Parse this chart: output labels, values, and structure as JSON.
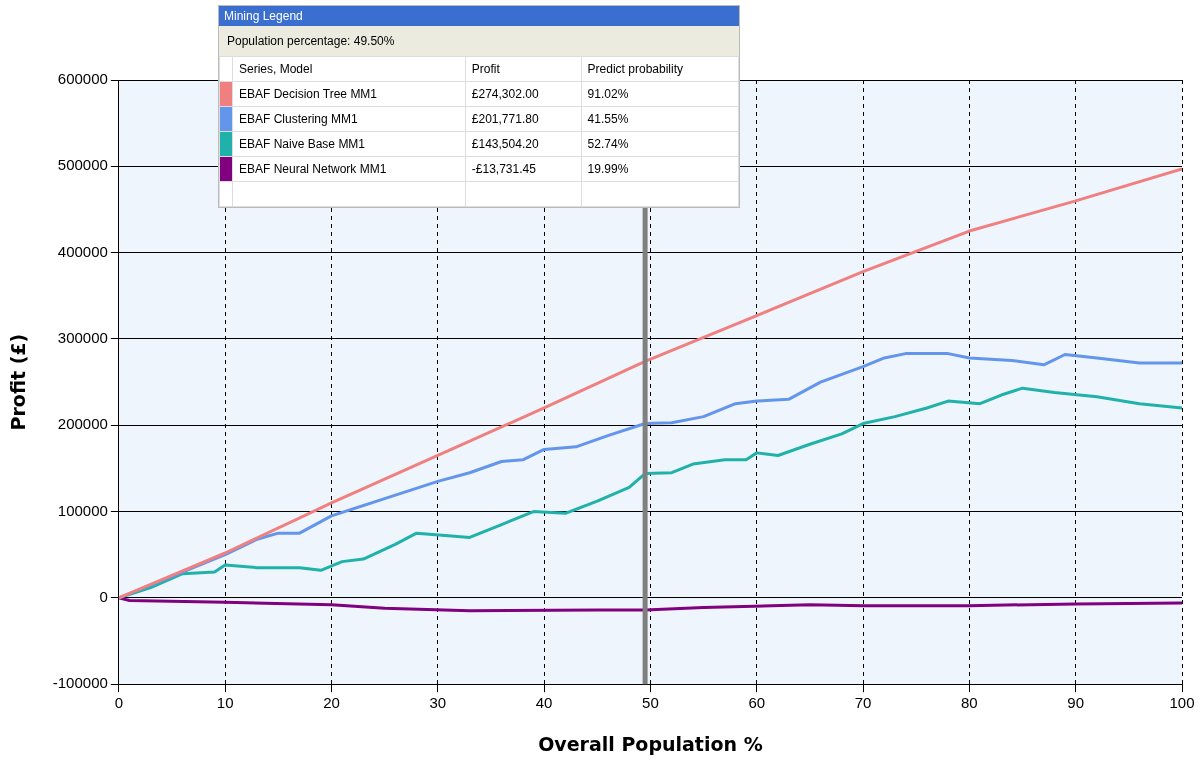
{
  "chart_data": {
    "type": "line",
    "xlabel": "Overall Population %",
    "ylabel": "Profit (£)",
    "legend_title": "Mining Legend",
    "xlim": [
      0,
      100
    ],
    "xticks": [
      0,
      10,
      20,
      30,
      40,
      50,
      60,
      70,
      80,
      90,
      100
    ],
    "ylim": [
      -100000,
      600000
    ],
    "yticks": [
      -100000,
      0,
      100000,
      200000,
      300000,
      400000,
      500000,
      600000
    ],
    "grid": true,
    "legend": "top left",
    "marker": "none",
    "line_style": "solid",
    "ref_lines": [
      {
        "axis": "x",
        "value": 49.5,
        "color": "#808080"
      }
    ],
    "annotations": [
      "Population percentage: 49.50%",
      "Series, Model",
      "Profit",
      "Predict probability",
      "£274,302.00",
      "91.02%",
      "£201,771.80",
      "41.55%",
      "£143,504.20",
      "52.74%",
      "-£13,731.45",
      "19.99%"
    ],
    "series": [
      {
        "name": "EBAF Decision Tree MM1",
        "color": "#f08080",
        "x": [
          0,
          5,
          10,
          20,
          30,
          40,
          49.5,
          60,
          70,
          80,
          90,
          100
        ],
        "values": [
          0,
          26000,
          52000,
          110000,
          165000,
          220000,
          274000,
          327000,
          378000,
          425000,
          460000,
          497000
        ]
      },
      {
        "name": "EBAF Clustering MM1",
        "color": "#6495ed",
        "x": [
          0,
          5,
          10,
          13,
          15,
          17,
          20,
          25,
          30,
          33,
          36,
          38,
          40,
          43,
          46,
          49.5,
          52,
          55,
          58,
          60,
          63,
          66,
          70,
          72,
          74,
          78,
          80,
          84,
          87,
          89,
          92,
          96,
          100
        ],
        "values": [
          0,
          25000,
          50000,
          68000,
          75000,
          75000,
          95000,
          115000,
          135000,
          145000,
          158000,
          160000,
          172000,
          175000,
          188000,
          202000,
          203000,
          210000,
          225000,
          228000,
          230000,
          250000,
          268000,
          278000,
          283000,
          283000,
          278000,
          275000,
          270000,
          282000,
          278000,
          272000,
          272000
        ]
      },
      {
        "name": "EBAF Naive Base MM1",
        "color": "#20b2aa",
        "x": [
          0,
          3,
          6,
          9,
          10,
          13,
          17,
          19,
          21,
          23,
          26,
          28,
          31,
          33,
          36,
          39,
          42,
          45,
          48,
          49.5,
          52,
          54,
          57,
          59,
          60,
          62,
          65,
          68,
          70,
          73,
          76,
          78,
          81,
          83,
          85,
          88,
          92,
          96,
          100
        ],
        "values": [
          0,
          12000,
          28000,
          30000,
          38000,
          35000,
          35000,
          32000,
          42000,
          45000,
          62000,
          75000,
          72000,
          70000,
          85000,
          100000,
          98000,
          112000,
          128000,
          144000,
          145000,
          155000,
          160000,
          160000,
          168000,
          165000,
          178000,
          190000,
          202000,
          210000,
          220000,
          228000,
          225000,
          235000,
          243000,
          238000,
          233000,
          225000,
          220000
        ]
      },
      {
        "name": "EBAF Neural Network MM1",
        "color": "#800080",
        "x": [
          0,
          1,
          10,
          20,
          25,
          33,
          45,
          49.5,
          55,
          65,
          70,
          80,
          90,
          100
        ],
        "values": [
          0,
          -3000,
          -5000,
          -8000,
          -12000,
          -15000,
          -14000,
          -14000,
          -11000,
          -8000,
          -9000,
          -9000,
          -7000,
          -6000
        ]
      }
    ]
  }
}
